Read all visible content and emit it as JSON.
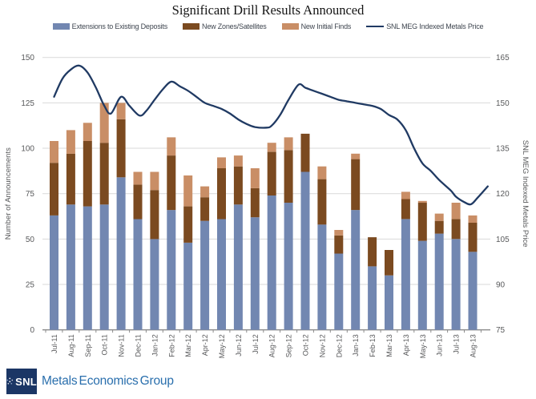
{
  "title": "Significant Drill Results Announced",
  "colors": {
    "blue": "#7287b1",
    "brown": "#7b4a20",
    "tan": "#c98e66",
    "line": "#203a63",
    "grid": "#d9d9d9",
    "axis": "#8c8c8c",
    "tick_text": "#58595b",
    "legend_text": "#3f4650",
    "logo_navy": "#1b3665",
    "logo_blue": "#2a6fad"
  },
  "legend": {
    "items": [
      {
        "label": "Extensions to Existing Deposits",
        "type": "bar",
        "color_key": "blue",
        "icon": "blue-swatch-icon"
      },
      {
        "label": "New Zones/Satellites",
        "type": "bar",
        "color_key": "brown",
        "icon": "brown-swatch-icon"
      },
      {
        "label": "New Initial Finds",
        "type": "bar",
        "color_key": "tan",
        "icon": "tan-swatch-icon"
      },
      {
        "label": "SNL MEG Indexed Metals Price",
        "type": "line",
        "color_key": "line",
        "icon": "line-swatch-icon"
      }
    ]
  },
  "chart_data": {
    "type": "combo-stacked-bar-line",
    "categories": [
      "Jul-11",
      "Aug-11",
      "Sep-11",
      "Oct-11",
      "Nov-11",
      "Dec-11",
      "Jan-12",
      "Feb-12",
      "Mar-12",
      "Apr-12",
      "May-12",
      "Jun-12",
      "Jul-12",
      "Aug-12",
      "Sep-12",
      "Oct-12",
      "Nov-12",
      "Dec-12",
      "Jan-13",
      "Feb-13",
      "Mar-13",
      "Apr-13",
      "May-13",
      "Jun-13",
      "Jul-13",
      "Aug-13"
    ],
    "bar_series": [
      {
        "name": "Extensions to Existing Deposits",
        "color_key": "blue",
        "values": [
          63,
          69,
          68,
          69,
          84,
          61,
          50,
          66,
          48,
          60,
          61,
          69,
          62,
          74,
          70,
          87,
          58,
          42,
          66,
          35,
          30,
          61,
          49,
          53,
          50,
          43
        ]
      },
      {
        "name": "New Zones/Satellites",
        "color_key": "brown",
        "values": [
          29,
          28,
          36,
          34,
          32,
          19,
          27,
          30,
          20,
          13,
          28,
          21,
          16,
          24,
          29,
          21,
          25,
          10,
          28,
          16,
          14,
          11,
          21,
          7,
          11,
          16
        ]
      },
      {
        "name": "New Initial Finds",
        "color_key": "tan",
        "values": [
          12,
          13,
          10,
          22,
          9,
          7,
          10,
          10,
          17,
          6,
          6,
          6,
          11,
          5,
          7,
          0,
          7,
          3,
          3,
          0,
          0,
          4,
          1,
          4,
          9,
          4
        ]
      }
    ],
    "bar_totals": [
      104,
      110,
      114,
      125,
      125,
      87,
      87,
      106,
      85,
      79,
      95,
      96,
      89,
      103,
      106,
      108,
      90,
      55,
      97,
      51,
      44,
      76,
      71,
      64,
      70,
      63
    ],
    "line_series": {
      "name": "SNL MEG Indexed Metals Price",
      "axis": "right",
      "monthly_values": [
        152,
        161,
        160,
        149,
        152,
        146,
        151,
        157,
        154,
        150,
        148,
        144,
        142,
        142,
        151,
        155,
        153,
        151,
        150,
        149,
        146,
        141,
        130,
        125,
        119,
        117
      ],
      "points": [
        [
          0,
          152
        ],
        [
          0.5,
          158
        ],
        [
          1,
          161
        ],
        [
          1.5,
          162.3
        ],
        [
          2,
          160
        ],
        [
          2.5,
          155
        ],
        [
          3,
          149
        ],
        [
          3.4,
          146.5
        ],
        [
          4,
          152
        ],
        [
          4.5,
          149
        ],
        [
          5.1,
          145.8
        ],
        [
          5.5,
          147.3
        ],
        [
          6,
          151
        ],
        [
          6.5,
          154.5
        ],
        [
          7,
          157
        ],
        [
          7.5,
          155.5
        ],
        [
          8,
          154
        ],
        [
          8.5,
          152
        ],
        [
          9,
          150
        ],
        [
          9.5,
          149
        ],
        [
          10,
          148
        ],
        [
          10.5,
          146.5
        ],
        [
          11,
          144.5
        ],
        [
          11.5,
          143
        ],
        [
          12,
          142
        ],
        [
          12.7,
          141.8
        ],
        [
          13,
          142.5
        ],
        [
          13.5,
          146
        ],
        [
          14,
          151
        ],
        [
          14.6,
          156
        ],
        [
          15,
          155
        ],
        [
          15.5,
          154
        ],
        [
          16,
          153
        ],
        [
          16.5,
          152
        ],
        [
          17,
          151
        ],
        [
          17.5,
          150.5
        ],
        [
          18,
          150
        ],
        [
          18.5,
          149.5
        ],
        [
          19,
          149
        ],
        [
          19.5,
          148
        ],
        [
          20,
          146
        ],
        [
          20.5,
          144.5
        ],
        [
          21,
          141
        ],
        [
          21.5,
          135
        ],
        [
          22,
          130
        ],
        [
          22.5,
          127.5
        ],
        [
          23,
          124.5
        ],
        [
          23.7,
          121
        ],
        [
          24,
          119
        ],
        [
          24.5,
          117.2
        ],
        [
          24.9,
          116.5
        ],
        [
          25.3,
          118.7
        ],
        [
          25.9,
          122.4
        ]
      ]
    },
    "left_axis": {
      "label": "Number of Announcements",
      "min": 0,
      "max": 150,
      "ticks": [
        150,
        125,
        100,
        75,
        50,
        25,
        0
      ]
    },
    "right_axis": {
      "label": "SNL MEG Indexed Metals Price",
      "min": 75,
      "max": 165,
      "ticks": [
        165,
        150,
        135,
        120,
        105,
        90,
        75
      ]
    },
    "grid": true,
    "legend_position": "top"
  },
  "footer": {
    "logo_text": "SNL",
    "company": "Metals Economics Group"
  }
}
